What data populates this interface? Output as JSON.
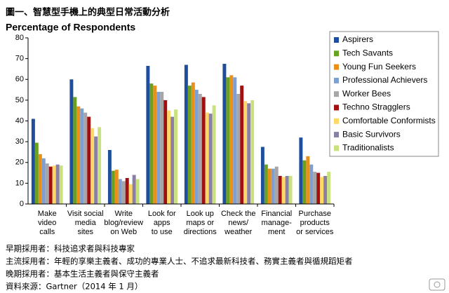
{
  "header": {
    "title": "圖一、智慧型手機上的典型日常活動分析"
  },
  "chart_data": {
    "type": "bar",
    "y_label": "Percentage of Respondents",
    "categories": [
      "Make\nvideo\ncalls",
      "Visit social\nmedia\nsites",
      "Write\nblog/review\non Web",
      "Look for\napps\nto use",
      "Look up\nmaps or\ndirections",
      "Check the\nnews/\nweather",
      "Financial\nmanage-\nment",
      "Purchase\nproducts\nor services"
    ],
    "series": [
      {
        "name": "Aspirers",
        "color": "#1f4e9c",
        "values": [
          41,
          60,
          26,
          66.5,
          67,
          67.5,
          27.5,
          32
        ]
      },
      {
        "name": "Tech Savants",
        "color": "#6aa121",
        "values": [
          29.5,
          51.5,
          16,
          58,
          57,
          61,
          19,
          21
        ]
      },
      {
        "name": "Young Fun Seekers",
        "color": "#e8901a",
        "values": [
          24,
          47,
          16.5,
          57,
          58.5,
          62,
          17,
          23
        ]
      },
      {
        "name": "Professional Achievers",
        "color": "#7f9fd3",
        "values": [
          22,
          46,
          12,
          54,
          55,
          61,
          17,
          19
        ]
      },
      {
        "name": "Worker Bees",
        "color": "#a6a6a6",
        "values": [
          19.5,
          44,
          11,
          54,
          53,
          53,
          18,
          15.5
        ]
      },
      {
        "name": "Techno Stragglers",
        "color": "#a01010",
        "values": [
          18,
          42,
          12.5,
          50,
          51.5,
          57,
          13.5,
          15
        ]
      },
      {
        "name": "Comfortable Conformists",
        "color": "#ffd966",
        "values": [
          18.5,
          36.5,
          9.5,
          45,
          44,
          49.5,
          13,
          13
        ]
      },
      {
        "name": "Basic Survivors",
        "color": "#8c7fa6",
        "values": [
          19,
          32.5,
          14,
          42,
          43.5,
          48.5,
          13.5,
          13.5
        ]
      },
      {
        "name": "Traditionalists",
        "color": "#c9e27f",
        "values": [
          18.5,
          37,
          12,
          45.5,
          47.5,
          50,
          13.5,
          15.5
        ]
      }
    ],
    "ylim": [
      0,
      80
    ],
    "yticks": [
      0,
      10,
      20,
      30,
      40,
      50,
      60,
      70,
      80
    ],
    "grid": false,
    "legend": "right"
  },
  "notes": [
    "早期採用者：科技追求者與科技專家",
    "主流採用者：年輕的享樂主義者、成功的專業人士、不追求最新科技者、務實主義者與循規蹈矩者",
    "晚期採用者：基本生活主義者與保守主義者",
    "資料來源：Gartner（2014 年 1 月）"
  ]
}
